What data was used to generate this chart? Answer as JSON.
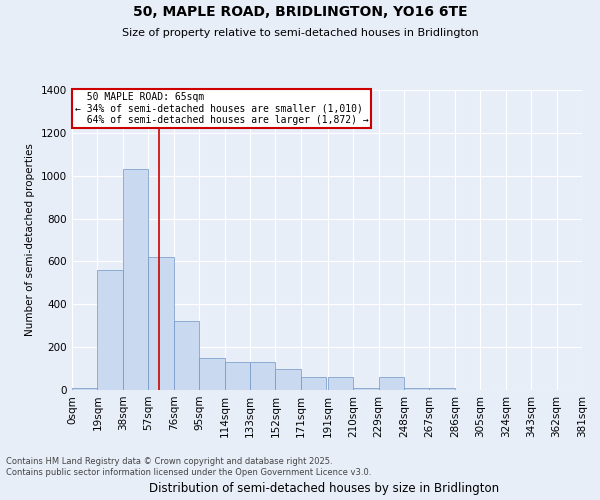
{
  "title": "50, MAPLE ROAD, BRIDLINGTON, YO16 6TE",
  "subtitle": "Size of property relative to semi-detached houses in Bridlington",
  "xlabel": "Distribution of semi-detached houses by size in Bridlington",
  "ylabel": "Number of semi-detached properties",
  "property_label": "50 MAPLE ROAD: 65sqm",
  "pct_smaller": "34% of semi-detached houses are smaller (1,010)",
  "pct_larger": "64% of semi-detached houses are larger (1,872)",
  "property_size_sqm": 65,
  "bin_edges": [
    0,
    19,
    38,
    57,
    76,
    95,
    114,
    133,
    152,
    171,
    191,
    210,
    229,
    248,
    267,
    286,
    305,
    324,
    343,
    362,
    381
  ],
  "bin_labels": [
    "0sqm",
    "19sqm",
    "38sqm",
    "57sqm",
    "76sqm",
    "95sqm",
    "114sqm",
    "133sqm",
    "152sqm",
    "171sqm",
    "191sqm",
    "210sqm",
    "229sqm",
    "248sqm",
    "267sqm",
    "286sqm",
    "305sqm",
    "324sqm",
    "343sqm",
    "362sqm",
    "381sqm"
  ],
  "bar_values": [
    10,
    560,
    1030,
    620,
    320,
    150,
    130,
    130,
    100,
    60,
    60,
    10,
    60,
    10,
    10,
    0,
    0,
    0,
    0,
    0
  ],
  "bar_color": "#c9d9f0",
  "bar_edge_color": "#7094c5",
  "highlight_line_color": "#cc0000",
  "annotation_box_color": "#cc0000",
  "background_color": "#e8eef8",
  "ylim": [
    0,
    1400
  ],
  "yticks": [
    0,
    200,
    400,
    600,
    800,
    1000,
    1200,
    1400
  ],
  "grid_color": "#ffffff",
  "footer_line1": "Contains HM Land Registry data © Crown copyright and database right 2025.",
  "footer_line2": "Contains public sector information licensed under the Open Government Licence v3.0."
}
